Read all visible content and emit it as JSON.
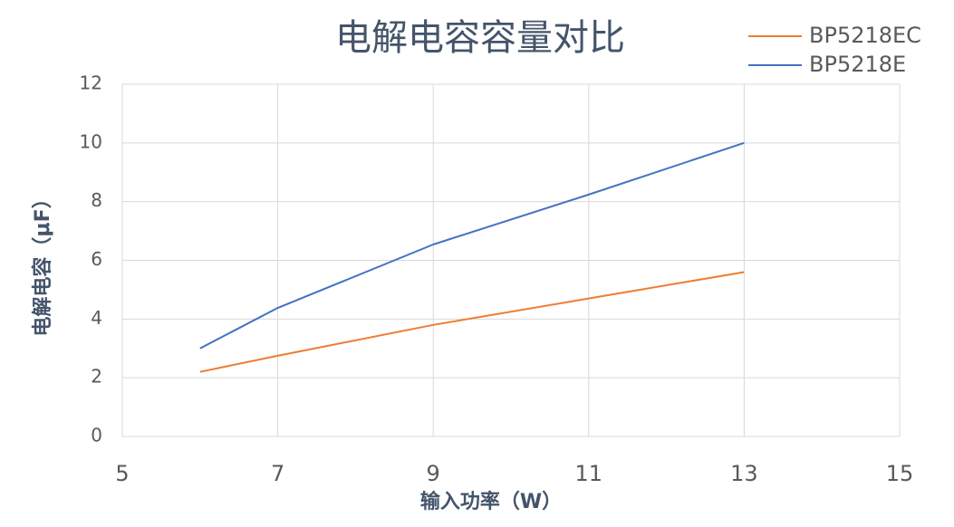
{
  "chart_data": {
    "type": "line",
    "title": "电解电容容量对比",
    "x_label": "输入功率（W）",
    "y_label": "电解电容（μF）",
    "x": [
      6,
      7,
      9,
      11,
      13
    ],
    "series": [
      {
        "name": "BP5218EC",
        "color": "#ed7d31",
        "values": [
          2.2,
          2.75,
          3.8,
          4.7,
          5.6
        ]
      },
      {
        "name": "BP5218E",
        "color": "#4472c4",
        "values": [
          3.0,
          4.38,
          6.54,
          8.24,
          10.0
        ]
      }
    ],
    "xlim": [
      5,
      15
    ],
    "xticks": [
      5,
      7,
      9,
      11,
      13,
      15
    ],
    "ylim": [
      0,
      12
    ],
    "yticks": [
      0,
      2,
      4,
      6,
      8,
      10,
      12
    ],
    "grid": true,
    "legend": "top-right"
  }
}
